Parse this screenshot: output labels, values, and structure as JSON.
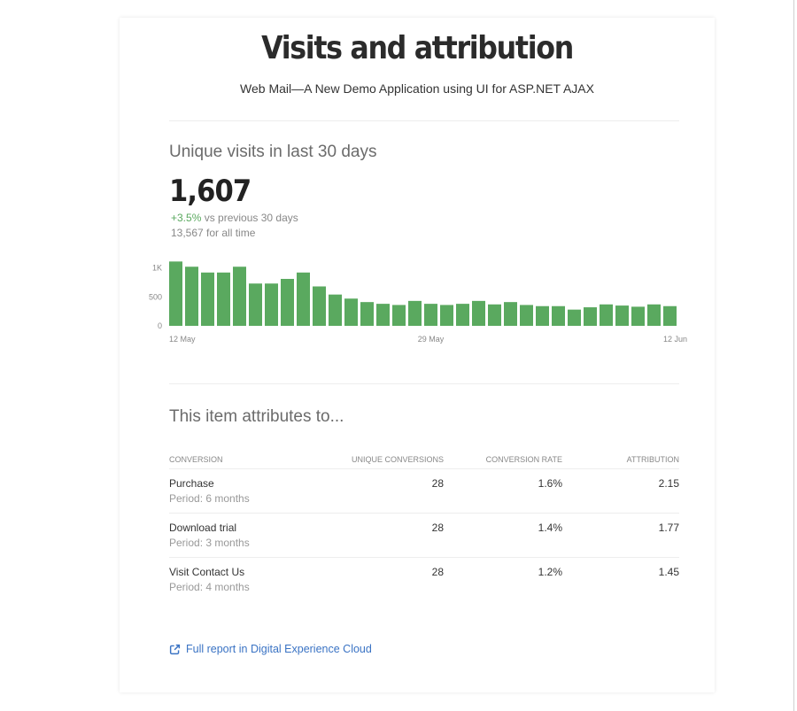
{
  "header": {
    "title": "Visits and attribution",
    "subtitle": "Web Mail—A New Demo Application using UI for ASP.NET AJAX"
  },
  "visits": {
    "heading": "Unique visits in last 30 days",
    "total": "1,607",
    "delta_value": "+3.5%",
    "delta_text": " vs previous 30 days",
    "all_time": "13,567 for all time"
  },
  "chart_data": {
    "type": "bar",
    "y_ticks": [
      "1K",
      "500",
      "0"
    ],
    "ylim": [
      0,
      1100
    ],
    "x_labels": [
      "12 May",
      "29 May",
      "12 Jun"
    ],
    "x_label_indices": [
      0,
      16,
      31
    ],
    "values": [
      1110,
      1020,
      920,
      920,
      1020,
      730,
      730,
      810,
      920,
      680,
      540,
      470,
      410,
      380,
      360,
      430,
      380,
      360,
      380,
      430,
      370,
      410,
      360,
      340,
      340,
      280,
      320,
      370,
      350,
      330,
      370,
      340
    ],
    "bar_color": "#5aa95f",
    "grid": false
  },
  "attribution": {
    "heading": "This item attributes to...",
    "columns": [
      "Conversion",
      "Unique conversions",
      "Conversion rate",
      "Attribution"
    ],
    "rows": [
      {
        "name": "Purchase",
        "period": "Period: 6 months",
        "unique": "28",
        "rate": "1.6%",
        "attribution": "2.15"
      },
      {
        "name": "Download trial",
        "period": "Period: 3 months",
        "unique": "28",
        "rate": "1.4%",
        "attribution": "1.77"
      },
      {
        "name": "Visit Contact Us",
        "period": "Period: 4 months",
        "unique": "28",
        "rate": "1.2%",
        "attribution": "1.45"
      }
    ]
  },
  "footer": {
    "link_label": "Full report in Digital Experience Cloud",
    "link_icon": "external-link-icon",
    "link_color": "#3a73c4"
  }
}
